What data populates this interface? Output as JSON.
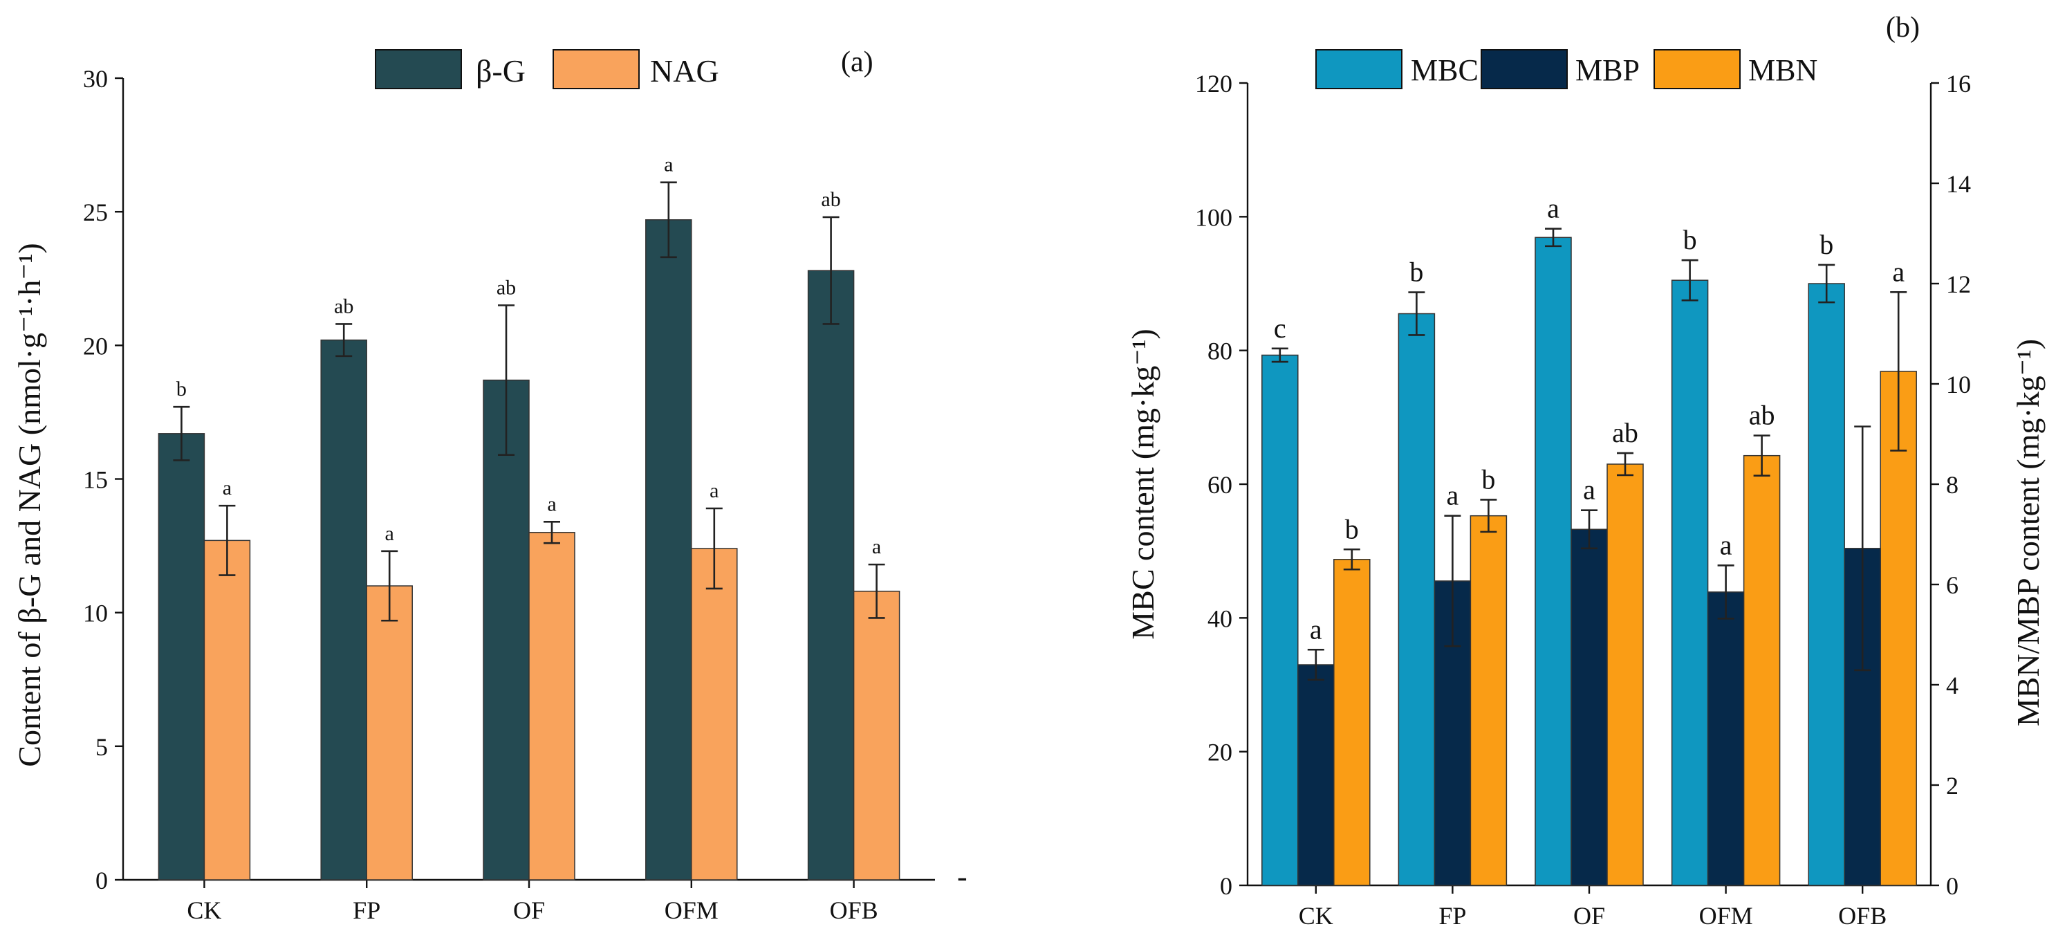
{
  "colors": {
    "beta_g": "#244a52",
    "nag": "#f9a35c",
    "mbc": "#0f97c0",
    "mbp": "#06294a",
    "mbn": "#fa9d15"
  },
  "stray_mark": "-",
  "chart_data": [
    {
      "type": "bar",
      "panel_label": "(a)",
      "title": "",
      "xlabel": "",
      "ylabel": "Content of β-G and NAG (nmol·g⁻¹·h⁻¹)",
      "categories": [
        "CK",
        "FP",
        "OF",
        "OFM",
        "OFB"
      ],
      "ylim": [
        0,
        30
      ],
      "yticks": [
        0,
        5,
        10,
        15,
        20,
        25,
        30
      ],
      "legend_position": "top",
      "series": [
        {
          "name": "β-G",
          "values": [
            16.7,
            20.2,
            18.7,
            24.7,
            22.8
          ],
          "errors": [
            1.0,
            0.6,
            2.8,
            1.4,
            2.0
          ],
          "letters": [
            "b",
            "ab",
            "ab",
            "a",
            "ab"
          ]
        },
        {
          "name": "NAG",
          "values": [
            12.7,
            11.0,
            13.0,
            12.4,
            10.8
          ],
          "errors": [
            1.3,
            1.3,
            0.4,
            1.5,
            1.0
          ],
          "letters": [
            "a",
            "a",
            "a",
            "a",
            "a"
          ]
        }
      ]
    },
    {
      "type": "bar",
      "panel_label": "(b)",
      "title": "",
      "xlabel": "",
      "ylabel": "MBC content (mg·kg⁻¹)",
      "ylabel_right": "MBN/MBP content (mg·kg⁻¹)",
      "categories": [
        "CK",
        "FP",
        "OF",
        "OFM",
        "OFB"
      ],
      "ylim": [
        0,
        120
      ],
      "yticks": [
        0,
        20,
        40,
        60,
        80,
        100,
        120
      ],
      "ylim_right": [
        0,
        16
      ],
      "yticks_right": [
        0,
        2,
        4,
        6,
        8,
        10,
        12,
        14,
        16
      ],
      "legend_position": "top",
      "series": [
        {
          "name": "MBC",
          "axis": "left",
          "values": [
            79.3,
            85.5,
            96.9,
            90.5,
            90.0
          ],
          "errors": [
            1.0,
            3.2,
            1.3,
            3.0,
            2.8
          ],
          "letters": [
            "c",
            "b",
            "a",
            "b",
            "b"
          ]
        },
        {
          "name": "MBP",
          "axis": "right",
          "values": [
            4.4,
            6.07,
            7.1,
            5.85,
            6.72
          ],
          "errors": [
            0.3,
            1.3,
            0.38,
            0.53,
            2.43
          ],
          "letters": [
            "a",
            "a",
            "a",
            "a",
            ""
          ]
        },
        {
          "name": "MBN",
          "axis": "right",
          "values": [
            6.5,
            7.37,
            8.4,
            8.57,
            10.25
          ],
          "errors": [
            0.2,
            0.32,
            0.22,
            0.4,
            1.58
          ],
          "letters": [
            "b",
            "b",
            "ab",
            "ab",
            "a"
          ]
        }
      ]
    }
  ]
}
